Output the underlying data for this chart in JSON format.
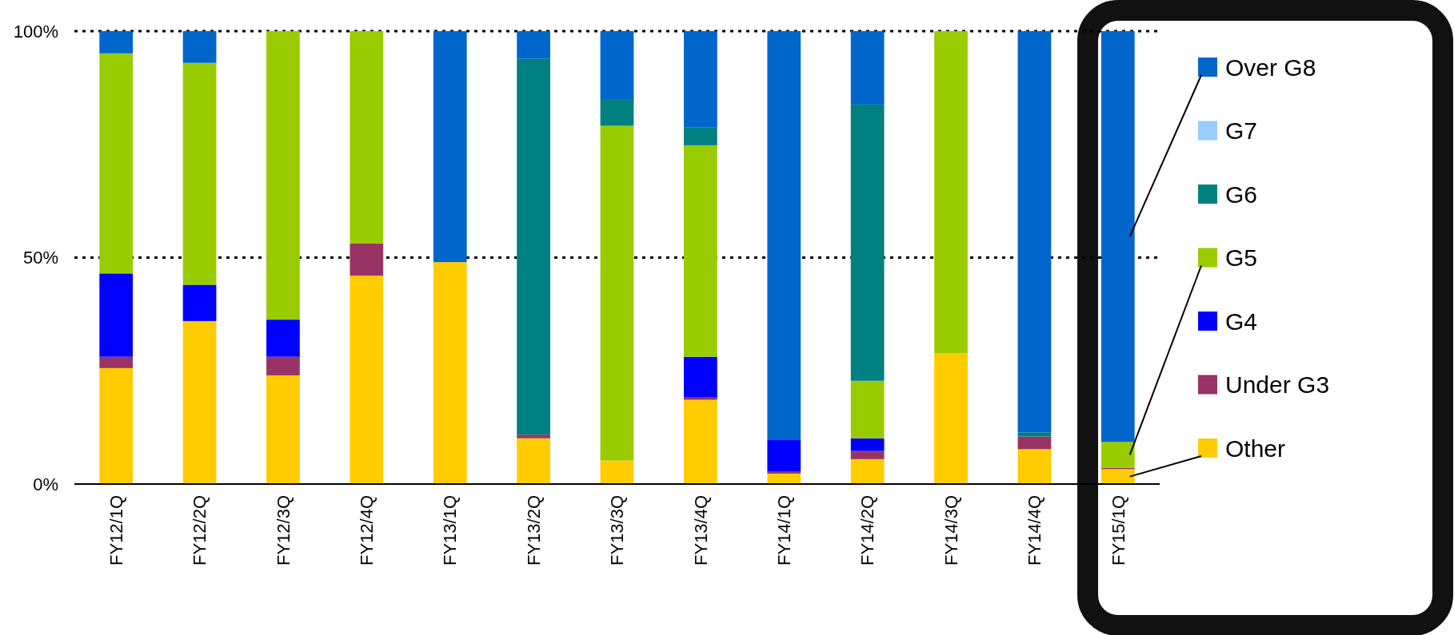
{
  "chart_data": {
    "type": "bar",
    "stacked": true,
    "categories": [
      "FY12/1Q",
      "FY12/2Q",
      "FY12/3Q",
      "FY12/4Q",
      "FY13/1Q",
      "FY13/2Q",
      "FY13/3Q",
      "FY13/4Q",
      "FY14/1Q",
      "FY14/2Q",
      "FY14/3Q",
      "FY14/4Q",
      "FY15/1Q"
    ],
    "series": [
      {
        "name": "Other",
        "color": "#ffcc00",
        "values": [
          25.6,
          36.0,
          24.0,
          46.0,
          49.0,
          10.1,
          5.2,
          18.6,
          2.3,
          5.5,
          28.9,
          7.7,
          3.3
        ]
      },
      {
        "name": "Under G3",
        "color": "#993366",
        "values": [
          2.5,
          0,
          4.1,
          7.1,
          0,
          0.8,
          0,
          0.5,
          0.4,
          1.8,
          0,
          2.8,
          0.3
        ]
      },
      {
        "name": "G4",
        "color": "#0000ff",
        "values": [
          18.4,
          8.0,
          8.2,
          0,
          0,
          0,
          0,
          9.0,
          7.0,
          2.8,
          0,
          0,
          0
        ]
      },
      {
        "name": "G5",
        "color": "#99cc00",
        "values": [
          48.6,
          49.0,
          63.7,
          46.9,
          0,
          0,
          73.9,
          46.7,
          0,
          12.7,
          71.1,
          0,
          5.7
        ]
      },
      {
        "name": "G6",
        "color": "#008080",
        "values": [
          0,
          0,
          0,
          0,
          0,
          83.0,
          5.9,
          4.0,
          0,
          61.0,
          0,
          0.9,
          0
        ]
      },
      {
        "name": "G7",
        "color": "#99ccff",
        "values": [
          0,
          0,
          0,
          0,
          0,
          0,
          0,
          0,
          0,
          0,
          0,
          0,
          0
        ]
      },
      {
        "name": "Over G8",
        "color": "#0066cc",
        "values": [
          4.9,
          7.0,
          0,
          0,
          51.0,
          6.1,
          15.0,
          21.2,
          90.3,
          16.2,
          0,
          88.6,
          90.7
        ]
      }
    ],
    "ylim": [
      0,
      100
    ],
    "yticks": [
      {
        "value": 0,
        "label": "0%"
      },
      {
        "value": 50,
        "label": "50%"
      },
      {
        "value": 100,
        "label": "100%"
      }
    ],
    "grid": "y",
    "legend": "right"
  }
}
